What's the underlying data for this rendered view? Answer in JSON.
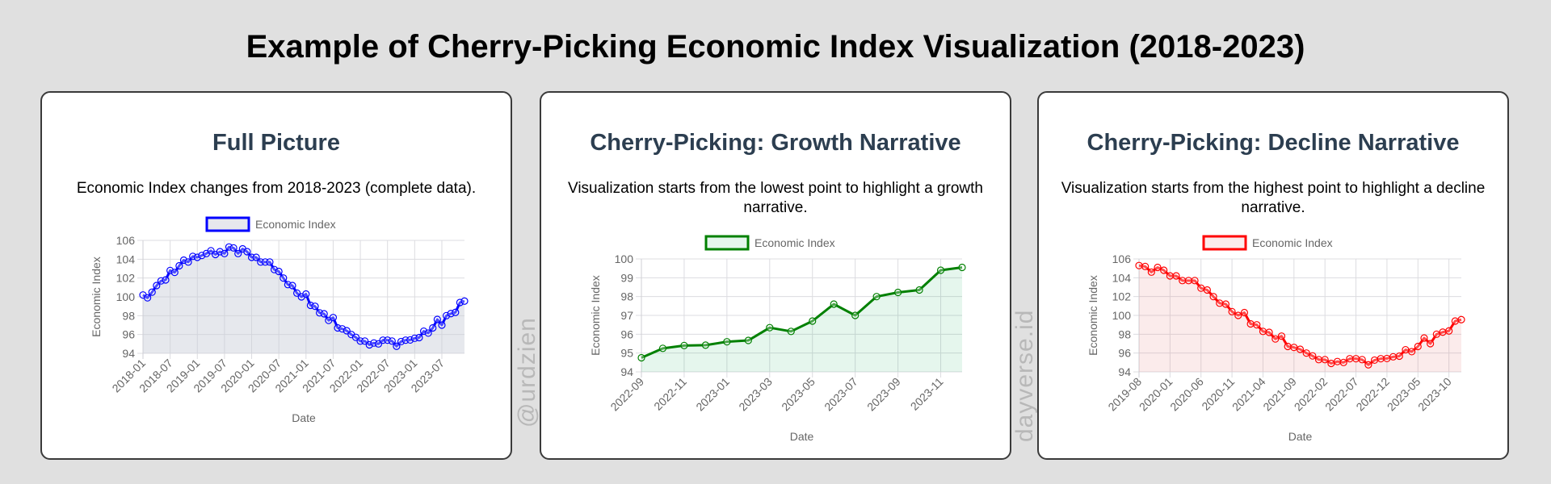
{
  "page": {
    "title": "Example of Cherry-Picking Economic Index Visualization (2018-2023)"
  },
  "watermarks": [
    "@urdzien",
    "dayverse.id"
  ],
  "cards": [
    {
      "title": "Full Picture",
      "description": "Economic Index changes from 2018-2023 (complete data).",
      "legend_label": "Economic Index",
      "color": "#0000ff",
      "fill": "rgba(200,205,215,0.45)"
    },
    {
      "title": "Cherry-Picking: Growth Narrative",
      "description": "Visualization starts from the lowest point to highlight a growth narrative.",
      "legend_label": "Economic Index",
      "color": "#008000",
      "fill": "rgba(0,170,80,0.10)"
    },
    {
      "title": "Cherry-Picking: Decline Narrative",
      "description": "Visualization starts from the highest point to highlight a decline narrative.",
      "legend_label": "Economic Index",
      "color": "#ff0000",
      "fill": "rgba(230,120,120,0.15)"
    }
  ],
  "chart_data": [
    {
      "type": "line",
      "title": "Full Picture",
      "subtitle": "Economic Index changes from 2018-2023 (complete data).",
      "xlabel": "Date",
      "ylabel": "Economic Index",
      "legend": [
        "Economic Index"
      ],
      "legend_position": "top",
      "grid": true,
      "ylim": [
        94,
        106
      ],
      "yticks": [
        94,
        96,
        98,
        100,
        102,
        104,
        106
      ],
      "xtick_labels": [
        "2018-01",
        "2018-07",
        "2019-01",
        "2019-07",
        "2020-01",
        "2020-07",
        "2021-01",
        "2021-07",
        "2022-01",
        "2022-07",
        "2023-01",
        "2023-07"
      ],
      "x_start": "2018-01",
      "x_end": "2023-12",
      "frequency": "monthly",
      "series": [
        {
          "name": "Economic Index",
          "color": "#0000ff",
          "values": [
            100.2,
            99.9,
            100.5,
            101.2,
            101.7,
            101.8,
            102.8,
            102.6,
            103.3,
            103.9,
            103.7,
            104.3,
            104.2,
            104.4,
            104.6,
            104.9,
            104.5,
            104.8,
            104.6,
            105.3,
            105.2,
            104.6,
            105.1,
            104.8,
            104.2,
            104.2,
            103.7,
            103.7,
            103.7,
            102.9,
            102.7,
            102.0,
            101.3,
            101.2,
            100.4,
            100.0,
            100.3,
            99.1,
            99.0,
            98.3,
            98.2,
            97.5,
            97.8,
            96.7,
            96.6,
            96.4,
            96.0,
            95.7,
            95.3,
            95.3,
            94.9,
            95.1,
            95.0,
            95.4,
            95.4,
            95.3,
            94.75,
            95.25,
            95.4,
            95.42,
            95.6,
            95.67,
            96.35,
            96.15,
            96.7,
            97.6,
            97.0,
            98.0,
            98.22,
            98.35,
            99.4,
            99.55
          ]
        }
      ]
    },
    {
      "type": "line",
      "title": "Cherry-Picking: Growth Narrative",
      "subtitle": "Visualization starts from the lowest point to highlight a growth narrative.",
      "xlabel": "Date",
      "ylabel": "Economic Index",
      "legend": [
        "Economic Index"
      ],
      "legend_position": "top",
      "grid": true,
      "ylim": [
        94,
        100
      ],
      "yticks": [
        94,
        95,
        96,
        97,
        98,
        99,
        100
      ],
      "xtick_labels": [
        "2022-09",
        "2022-11",
        "2023-01",
        "2023-03",
        "2023-05",
        "2023-07",
        "2023-09",
        "2023-11"
      ],
      "x_start": "2022-09",
      "x_end": "2023-12",
      "frequency": "monthly",
      "series": [
        {
          "name": "Economic Index",
          "color": "#008000",
          "values": [
            94.75,
            95.25,
            95.4,
            95.42,
            95.6,
            95.67,
            96.35,
            96.15,
            96.7,
            97.6,
            97.0,
            98.0,
            98.22,
            98.35,
            99.4,
            99.55
          ]
        }
      ]
    },
    {
      "type": "line",
      "title": "Cherry-Picking: Decline Narrative",
      "subtitle": "Visualization starts from the highest point to highlight a decline narrative.",
      "xlabel": "Date",
      "ylabel": "Economic Index",
      "legend": [
        "Economic Index"
      ],
      "legend_position": "top",
      "grid": true,
      "ylim": [
        94,
        106
      ],
      "yticks": [
        94,
        96,
        98,
        100,
        102,
        104,
        106
      ],
      "xtick_labels": [
        "2019-08",
        "2020-01",
        "2020-06",
        "2020-11",
        "2021-04",
        "2021-09",
        "2022-02",
        "2022-07",
        "2022-12",
        "2023-05",
        "2023-10"
      ],
      "x_start": "2019-08",
      "x_end": "2023-12",
      "frequency": "monthly",
      "series": [
        {
          "name": "Economic Index",
          "color": "#ff0000",
          "values": [
            105.3,
            105.2,
            104.6,
            105.1,
            104.8,
            104.2,
            104.2,
            103.7,
            103.7,
            103.7,
            102.9,
            102.7,
            102.0,
            101.3,
            101.2,
            100.4,
            100.0,
            100.3,
            99.1,
            99.0,
            98.3,
            98.2,
            97.5,
            97.8,
            96.7,
            96.6,
            96.4,
            96.0,
            95.7,
            95.3,
            95.3,
            94.9,
            95.1,
            95.0,
            95.4,
            95.4,
            95.3,
            94.75,
            95.25,
            95.4,
            95.42,
            95.6,
            95.67,
            96.35,
            96.15,
            96.7,
            97.6,
            97.0,
            98.0,
            98.22,
            98.35,
            99.4,
            99.55
          ]
        }
      ]
    }
  ]
}
